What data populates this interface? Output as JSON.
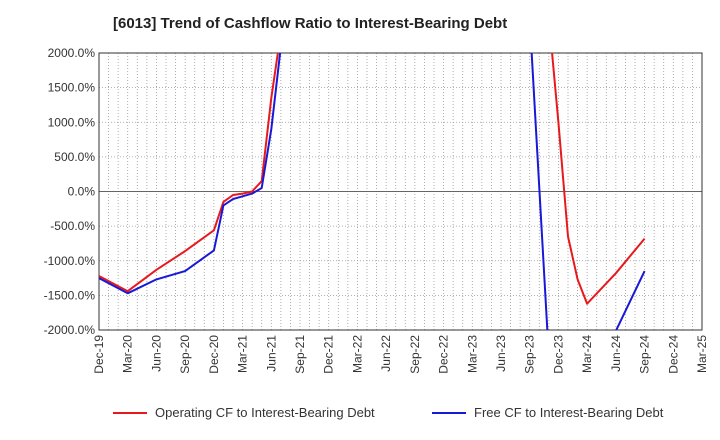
{
  "chart_data": {
    "type": "line",
    "title": "[6013]  Trend of Cashflow Ratio to Interest-Bearing Debt",
    "xlabel": "",
    "ylabel": "",
    "ylim": [
      -2000,
      2000
    ],
    "y_ticks": [
      2000,
      1500,
      1000,
      500,
      0,
      -500,
      -1000,
      -1500,
      -2000
    ],
    "y_tick_labels": [
      "2000.0%",
      "1500.0%",
      "1000.0%",
      "500.0%",
      "0.0%",
      "-500.0%",
      "-1000.0%",
      "-1500.0%",
      "-2000.0%"
    ],
    "x_tick_labels": [
      "Dec-19",
      "Mar-20",
      "Jun-20",
      "Sep-20",
      "Dec-20",
      "Mar-21",
      "Jun-21",
      "Sep-21",
      "Dec-21",
      "Mar-22",
      "Jun-22",
      "Sep-22",
      "Dec-22",
      "Mar-23",
      "Jun-23",
      "Sep-23",
      "Dec-23",
      "Mar-24",
      "Jun-24",
      "Sep-24",
      "Dec-24",
      "Mar-25"
    ],
    "x_range_months": [
      0,
      63
    ],
    "grid": true,
    "legend_position": "bottom",
    "series": [
      {
        "name": "Operating CF to Interest-Bearing Debt",
        "color": "#e8191d",
        "points": [
          [
            0,
            -1220
          ],
          [
            3,
            -1440
          ],
          [
            6,
            -1130
          ],
          [
            9,
            -860
          ],
          [
            12,
            -560
          ],
          [
            13,
            -150
          ],
          [
            14,
            -50
          ],
          [
            15,
            -30
          ],
          [
            16,
            0
          ],
          [
            17,
            150
          ],
          [
            18,
            1350
          ],
          [
            19,
            2300
          ],
          [
            47,
            2500
          ],
          [
            48,
            1000
          ],
          [
            49,
            -650
          ],
          [
            50,
            -1270
          ],
          [
            51,
            -1620
          ],
          [
            54,
            -1180
          ],
          [
            57,
            -680
          ]
        ]
      },
      {
        "name": "Free CF to Interest-Bearing Debt",
        "color": "#1818d8",
        "points": [
          [
            0,
            -1250
          ],
          [
            3,
            -1470
          ],
          [
            6,
            -1270
          ],
          [
            9,
            -1150
          ],
          [
            12,
            -850
          ],
          [
            13,
            -200
          ],
          [
            14,
            -110
          ],
          [
            15,
            -70
          ],
          [
            16,
            -30
          ],
          [
            17,
            50
          ],
          [
            18,
            900
          ],
          [
            19,
            2100
          ],
          [
            45,
            2500
          ],
          [
            47,
            -2400
          ],
          [
            53,
            -2300
          ],
          [
            57,
            -1150
          ]
        ]
      }
    ]
  }
}
